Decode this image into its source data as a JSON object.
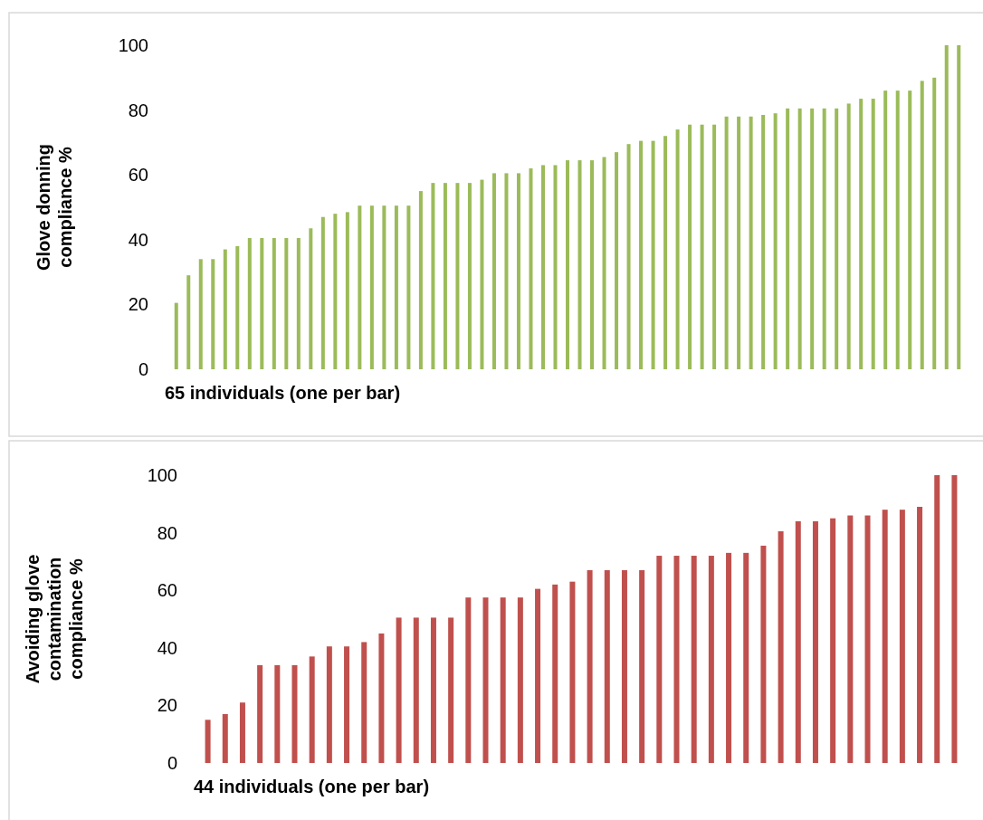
{
  "chart_data": [
    {
      "type": "bar",
      "ylabel": "Glove donning compliance %",
      "xlabel": "65 individuals (one per bar)",
      "categories": [
        null,
        null,
        null,
        null,
        null,
        null,
        null,
        null,
        null,
        null,
        null,
        null,
        null,
        null,
        null,
        null,
        null,
        null,
        null,
        null,
        null,
        null,
        null,
        null,
        null,
        null,
        null,
        null,
        null,
        null,
        null,
        null,
        null,
        null,
        null,
        null,
        null,
        null,
        null,
        null,
        null,
        null,
        null,
        null,
        null,
        null,
        null,
        null,
        null,
        null,
        null,
        null,
        null,
        null,
        null,
        null,
        null,
        null,
        null,
        null,
        null,
        null,
        null,
        null,
        null
      ],
      "values": [
        20.5,
        29,
        34,
        34,
        37,
        38,
        40.5,
        40.5,
        40.5,
        40.5,
        40.5,
        43.5,
        47,
        48,
        48.5,
        50.5,
        50.5,
        50.5,
        50.5,
        50.5,
        55,
        57.5,
        57.5,
        57.5,
        57.5,
        58.5,
        60.5,
        60.5,
        60.5,
        62,
        63,
        63,
        64.5,
        64.5,
        64.5,
        65.5,
        67,
        69.5,
        70.5,
        70.5,
        72,
        74,
        75.5,
        75.5,
        75.5,
        78,
        78,
        78,
        78.5,
        79,
        80.5,
        80.5,
        80.5,
        80.5,
        80.5,
        82,
        83.5,
        83.5,
        86,
        86,
        86,
        89,
        90,
        100,
        100
      ],
      "color": "#9bbb59",
      "ylim": [
        0,
        100
      ],
      "yticks": [
        0,
        20,
        40,
        60,
        80,
        100
      ],
      "grid": false
    },
    {
      "type": "bar",
      "ylabel": "Avoiding glove contamination compliance %",
      "xlabel": "44 individuals (one per bar)",
      "categories": [
        null,
        null,
        null,
        null,
        null,
        null,
        null,
        null,
        null,
        null,
        null,
        null,
        null,
        null,
        null,
        null,
        null,
        null,
        null,
        null,
        null,
        null,
        null,
        null,
        null,
        null,
        null,
        null,
        null,
        null,
        null,
        null,
        null,
        null,
        null,
        null,
        null,
        null,
        null,
        null,
        null,
        null,
        null,
        null
      ],
      "values": [
        15,
        17,
        21,
        34,
        34,
        34,
        37,
        40.5,
        40.5,
        42,
        45,
        50.5,
        50.5,
        50.5,
        50.5,
        57.5,
        57.5,
        57.5,
        57.5,
        60.5,
        62,
        63,
        67,
        67,
        67,
        67,
        72,
        72,
        72,
        72,
        73,
        73,
        75.5,
        80.5,
        84,
        84,
        85,
        86,
        86,
        88,
        88,
        89,
        100,
        100
      ],
      "color": "#c0504d",
      "ylim": [
        0,
        100
      ],
      "yticks": [
        0,
        20,
        40,
        60,
        80,
        100
      ],
      "grid": false
    }
  ]
}
